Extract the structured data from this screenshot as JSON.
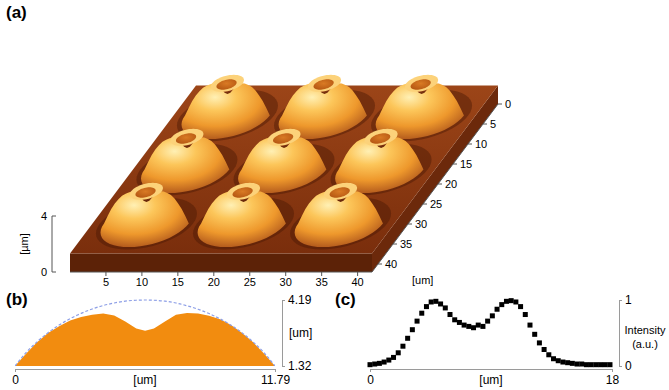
{
  "chart_data": [
    {
      "type": "surface3d",
      "label": "(a)",
      "xlabel": "[um]",
      "zlabel": "[µm]",
      "xlim": [
        0,
        42
      ],
      "ylim": [
        0,
        42
      ],
      "zlim": [
        0,
        4
      ],
      "xticks": [
        5,
        10,
        15,
        20,
        25,
        30,
        35,
        40
      ],
      "yticks": [
        0,
        5,
        10,
        15,
        20,
        25,
        30,
        35,
        40
      ],
      "zticks": [
        0,
        4
      ],
      "lens_x": [
        7.5,
        21,
        34.5,
        7.5,
        21,
        34.5,
        7.5,
        21,
        34.5
      ],
      "lens_y": [
        7.5,
        7.5,
        7.5,
        21,
        21,
        21,
        34.5,
        34.5,
        34.5
      ]
    },
    {
      "type": "area",
      "label": "(b)",
      "xlabel": "[um]",
      "ylabel": "[um]",
      "x": [
        0,
        0.5,
        1,
        1.5,
        2,
        2.5,
        3,
        3.5,
        4,
        4.5,
        5,
        5.5,
        5.9,
        6.3,
        6.8,
        7.3,
        7.8,
        8.3,
        8.8,
        9.3,
        9.8,
        10.3,
        10.8,
        11.3,
        11.79
      ],
      "xlim": [
        0,
        11.79
      ],
      "xticks": [
        0,
        11.79
      ],
      "ylim": [
        1.32,
        4.19
      ],
      "yticks": [
        1.32,
        4.19
      ],
      "series": [
        {
          "type": "area",
          "color": "#f28c0f",
          "values": [
            1.32,
            1.85,
            2.35,
            2.75,
            3.05,
            3.3,
            3.45,
            3.55,
            3.6,
            3.52,
            3.25,
            2.95,
            2.85,
            2.95,
            3.25,
            3.55,
            3.62,
            3.6,
            3.5,
            3.35,
            3.1,
            2.75,
            2.35,
            1.85,
            1.32
          ]
        },
        {
          "type": "line",
          "color": "#8c9ee6",
          "line_style": "dashed",
          "values": [
            1.32,
            1.9,
            2.37,
            2.77,
            3.1,
            3.38,
            3.61,
            3.8,
            3.95,
            4.06,
            4.14,
            4.18,
            4.19,
            4.18,
            4.14,
            4.06,
            3.94,
            3.79,
            3.6,
            3.37,
            3.09,
            2.76,
            2.36,
            1.89,
            1.32
          ]
        }
      ]
    },
    {
      "type": "scatter",
      "label": "(c)",
      "xlabel": "[um]",
      "ylabel": [
        "Intensity",
        "(a.u.)"
      ],
      "x": [
        0,
        0.35,
        0.7,
        1.05,
        1.4,
        1.75,
        2.1,
        2.45,
        2.8,
        3.15,
        3.5,
        3.85,
        4.2,
        4.55,
        4.9,
        5.25,
        5.6,
        5.95,
        6.3,
        6.65,
        7,
        7.35,
        7.7,
        8.05,
        8.4,
        8.75,
        9.1,
        9.45,
        9.8,
        10.15,
        10.5,
        10.85,
        11.2,
        11.55,
        11.9,
        12.25,
        12.6,
        12.95,
        13.3,
        13.65,
        14,
        14.35,
        14.7,
        15.05,
        15.4,
        15.75,
        16.1,
        16.45,
        16.8,
        17.15,
        17.5,
        17.85
      ],
      "values": [
        0.02,
        0.03,
        0.04,
        0.06,
        0.09,
        0.13,
        0.2,
        0.3,
        0.42,
        0.55,
        0.68,
        0.8,
        0.9,
        0.97,
        0.98,
        0.94,
        0.88,
        0.78,
        0.7,
        0.66,
        0.62,
        0.6,
        0.58,
        0.62,
        0.6,
        0.68,
        0.76,
        0.86,
        0.93,
        0.98,
        0.99,
        0.97,
        0.9,
        0.78,
        0.62,
        0.48,
        0.35,
        0.25,
        0.17,
        0.11,
        0.08,
        0.06,
        0.05,
        0.04,
        0.03,
        0.03,
        0.02,
        0.02,
        0.02,
        0.02,
        0.02,
        0.02
      ],
      "xlim": [
        0,
        18
      ],
      "xticks": [
        0,
        18
      ],
      "ylim": [
        0,
        1
      ],
      "yticks": [
        0,
        1
      ],
      "marker": "square",
      "color": "#000000"
    }
  ]
}
